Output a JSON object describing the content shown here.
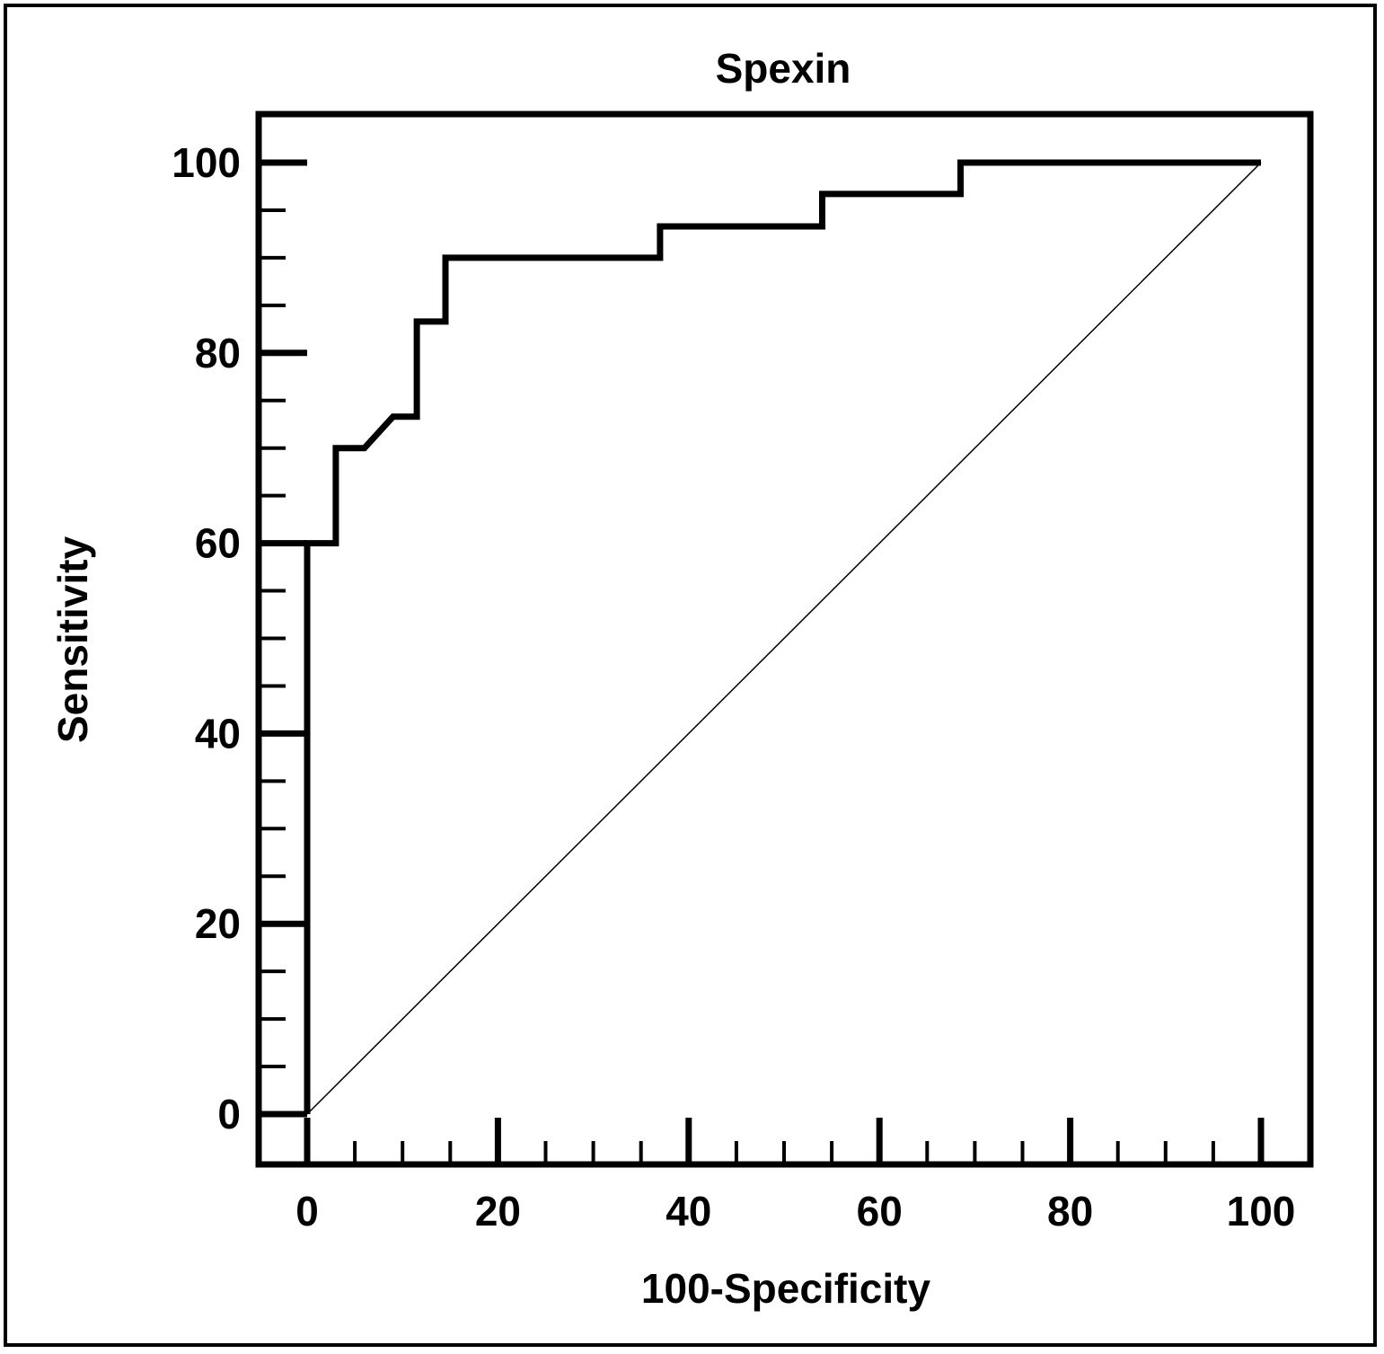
{
  "chart_data": {
    "type": "line",
    "title": "Spexin",
    "xlabel": "100-Specificity",
    "ylabel": "Sensitivity",
    "xlim": [
      0,
      100
    ],
    "ylim": [
      0,
      100
    ],
    "x_ticks": [
      "0",
      "20",
      "40",
      "60",
      "80",
      "100"
    ],
    "y_ticks": [
      "0",
      "20",
      "40",
      "60",
      "80",
      "100"
    ],
    "grid": false,
    "legend": "none",
    "series": [
      {
        "style": "solid-thick",
        "color": "#000000",
        "points": [
          [
            0,
            0
          ],
          [
            0,
            60
          ],
          [
            3,
            60
          ],
          [
            3,
            70
          ],
          [
            6,
            70
          ],
          [
            9,
            73.3
          ],
          [
            11.5,
            73.3
          ],
          [
            11.5,
            83.3
          ],
          [
            14.5,
            83.3
          ],
          [
            14.5,
            90
          ],
          [
            37,
            90
          ],
          [
            37,
            93.3
          ],
          [
            54,
            93.3
          ],
          [
            54,
            96.7
          ],
          [
            68.5,
            96.7
          ],
          [
            68.5,
            100
          ],
          [
            100,
            100
          ]
        ]
      },
      {
        "style": "reference-diagonal",
        "color": "#000000",
        "points": [
          [
            0,
            0
          ],
          [
            100,
            100
          ]
        ]
      }
    ]
  }
}
